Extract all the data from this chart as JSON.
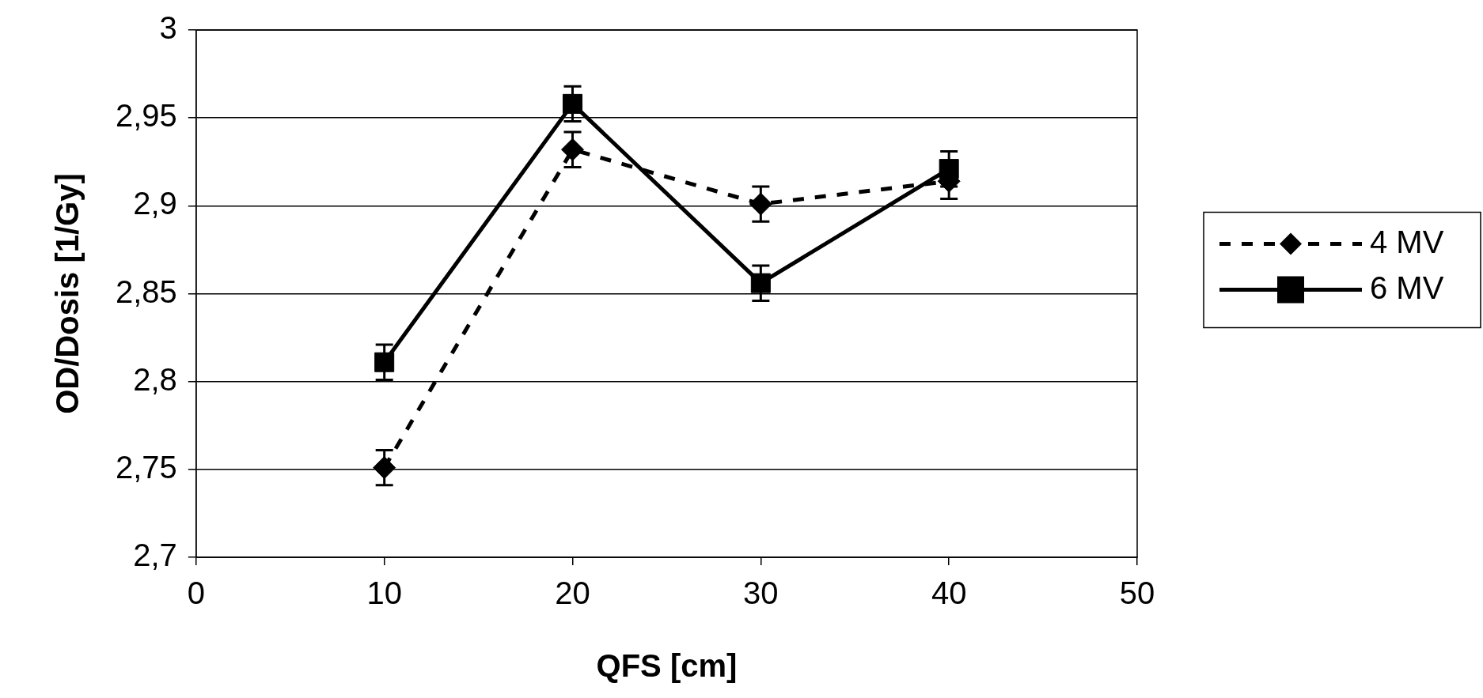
{
  "chart_data": {
    "type": "line",
    "xlabel": "QFS [cm]",
    "ylabel": "OD/Dosis [1/Gy]",
    "xlim": [
      0,
      50
    ],
    "xticks": [
      0,
      10,
      20,
      30,
      40,
      50
    ],
    "ylim": [
      2.7,
      3
    ],
    "yticks": [
      {
        "value": 2.7,
        "label": "2,7"
      },
      {
        "value": 2.75,
        "label": "2,75"
      },
      {
        "value": 2.8,
        "label": "2,8"
      },
      {
        "value": 2.85,
        "label": "2,85"
      },
      {
        "value": 2.9,
        "label": "2,9"
      },
      {
        "value": 2.95,
        "label": "2,95"
      },
      {
        "value": 3,
        "label": "3"
      }
    ],
    "grid": "y",
    "legend": "right",
    "series": [
      {
        "name": "4 MV",
        "color": "#000000",
        "x": [
          10,
          20,
          30,
          40
        ],
        "values": [
          2.751,
          2.932,
          2.901,
          2.914
        ],
        "errors": [
          0.01,
          0.01,
          0.01,
          0.01
        ],
        "marker": "diamond",
        "line_style": "dashed"
      },
      {
        "name": "6 MV",
        "color": "#000000",
        "x": [
          10,
          20,
          30,
          40
        ],
        "values": [
          2.811,
          2.958,
          2.856,
          2.921
        ],
        "errors": [
          0.01,
          0.01,
          0.01,
          0.01
        ],
        "marker": "square",
        "line_style": "solid"
      }
    ]
  }
}
